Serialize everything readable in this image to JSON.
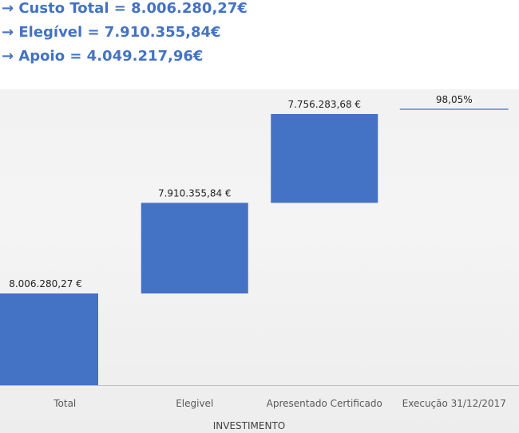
{
  "summary": {
    "lines": [
      "→ Custo Total = 8.006.280,27€",
      "→ Elegível = 7.910.355,84€",
      "→ Apoio = 4.049.217,96€"
    ]
  },
  "colors": {
    "summary_text": "#4472c4",
    "bar": "#4472c4",
    "axis": "#bfbfbf"
  },
  "chart_data": {
    "type": "bar",
    "subtype": "floating-waterfall",
    "categories": [
      "Total",
      "Elegivel",
      "Apresentado Certificado",
      "Execução 31/12/2017"
    ],
    "values": [
      8006280.27,
      7910355.84,
      7756283.68,
      0.9805
    ],
    "data_labels": [
      "8.006.280,27 €",
      "7.910.355,84 €",
      "7.756.283,68 €",
      "98,05%"
    ],
    "xlabel": "INVESTIMENTO",
    "ylabel": "",
    "title": "",
    "grid": false,
    "legend": "none"
  }
}
